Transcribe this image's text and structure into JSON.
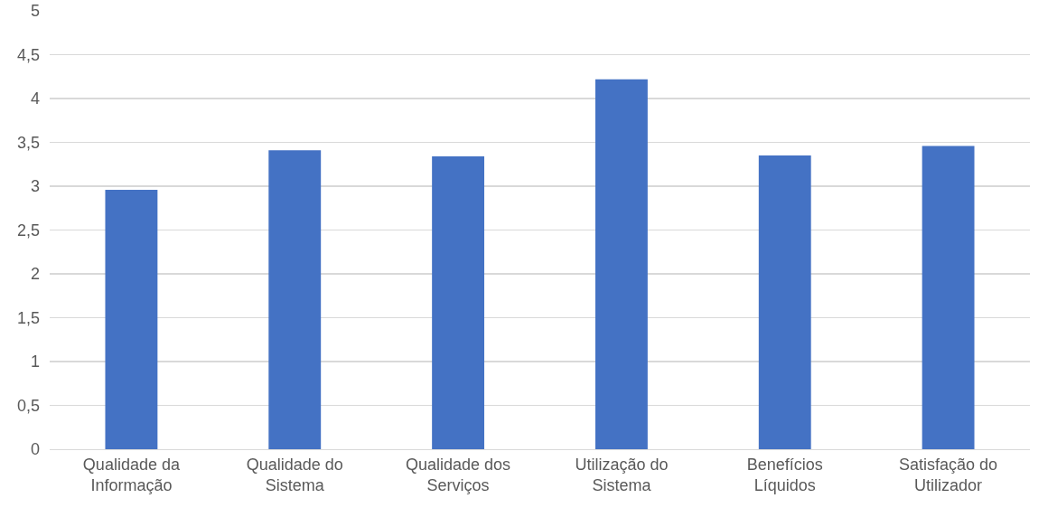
{
  "chart_data": {
    "type": "bar",
    "categories": [
      "Qualidade da Informação",
      "Qualidade do Sistema",
      "Qualidade dos Serviços",
      "Utilização do Sistema",
      "Benefícios Líquidos",
      "Satisfação do Utilizador"
    ],
    "values": [
      2.96,
      3.41,
      3.34,
      4.22,
      3.35,
      3.46
    ],
    "color": "#4472c4",
    "ylim": [
      0,
      5
    ],
    "yticks": [
      0,
      {
        "value": 0.5,
        "label": "0,5"
      },
      1,
      {
        "value": 1.5,
        "label": "1,5"
      },
      2,
      {
        "value": 2.5,
        "label": "2,5"
      },
      3,
      {
        "value": 3.5,
        "label": "3,5"
      },
      4,
      {
        "value": 4.5,
        "label": "4,5"
      },
      5
    ],
    "grid": "y"
  }
}
